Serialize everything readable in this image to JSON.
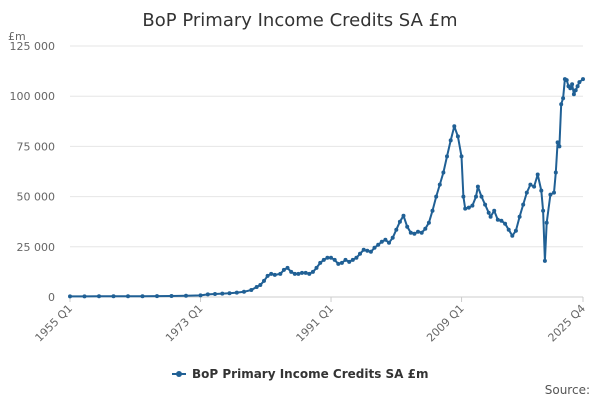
{
  "chart_data": {
    "type": "line",
    "title": "BoP Primary Income Credits SA £m",
    "unit_label": "£m",
    "ylim": [
      0,
      125000
    ],
    "y_ticks": [
      {
        "value": 0,
        "label": "0"
      },
      {
        "value": 25000,
        "label": "25 000"
      },
      {
        "value": 50000,
        "label": "50 000"
      },
      {
        "value": 75000,
        "label": "75 000"
      },
      {
        "value": 100000,
        "label": "100 000"
      },
      {
        "value": 125000,
        "label": "125 000"
      }
    ],
    "x_range": [
      "1955 Q1",
      "2025 Q4"
    ],
    "x_ticks": [
      "1955 Q1",
      "1973 Q1",
      "1991 Q1",
      "2009 Q1",
      "2025 Q4"
    ],
    "grid": "horizontal",
    "legend_position": "bottom",
    "series": [
      {
        "name": "BoP Primary Income Credits SA £m",
        "color": "#206095",
        "points": [
          [
            "1955 Q1",
            300
          ],
          [
            "1957 Q1",
            320
          ],
          [
            "1959 Q1",
            340
          ],
          [
            "1961 Q1",
            360
          ],
          [
            "1963 Q1",
            380
          ],
          [
            "1965 Q1",
            410
          ],
          [
            "1967 Q1",
            450
          ],
          [
            "1969 Q1",
            520
          ],
          [
            "1971 Q1",
            620
          ],
          [
            "1973 Q1",
            800
          ],
          [
            "1974 Q1",
            1300
          ],
          [
            "1975 Q1",
            1500
          ],
          [
            "1976 Q1",
            1700
          ],
          [
            "1977 Q1",
            1900
          ],
          [
            "1978 Q1",
            2200
          ],
          [
            "1979 Q1",
            2600
          ],
          [
            "1980 Q1",
            3500
          ],
          [
            "1980 Q4",
            5000
          ],
          [
            "1981 Q2",
            6000
          ],
          [
            "1981 Q4",
            8000
          ],
          [
            "1982 Q2",
            10500
          ],
          [
            "1982 Q4",
            11500
          ],
          [
            "1983 Q2",
            11000
          ],
          [
            "1984 Q1",
            11500
          ],
          [
            "1984 Q3",
            13500
          ],
          [
            "1985 Q1",
            14500
          ],
          [
            "1985 Q3",
            12500
          ],
          [
            "1986 Q1",
            11500
          ],
          [
            "1986 Q3",
            11500
          ],
          [
            "1987 Q1",
            12000
          ],
          [
            "1987 Q3",
            12000
          ],
          [
            "1988 Q1",
            11500
          ],
          [
            "1988 Q3",
            12500
          ],
          [
            "1989 Q1",
            14500
          ],
          [
            "1989 Q3",
            17000
          ],
          [
            "1990 Q1",
            18500
          ],
          [
            "1990 Q3",
            19500
          ],
          [
            "1991 Q1",
            19500
          ],
          [
            "1991 Q3",
            18500
          ],
          [
            "1992 Q1",
            16500
          ],
          [
            "1992 Q3",
            17000
          ],
          [
            "1993 Q1",
            18500
          ],
          [
            "1993 Q3",
            17500
          ],
          [
            "1994 Q1",
            18500
          ],
          [
            "1994 Q3",
            19500
          ],
          [
            "1995 Q1",
            21500
          ],
          [
            "1995 Q3",
            23500
          ],
          [
            "1996 Q1",
            23000
          ],
          [
            "1996 Q3",
            22500
          ],
          [
            "1997 Q1",
            24500
          ],
          [
            "1997 Q3",
            26000
          ],
          [
            "1998 Q1",
            27500
          ],
          [
            "1998 Q3",
            28500
          ],
          [
            "1999 Q1",
            27000
          ],
          [
            "1999 Q3",
            29500
          ],
          [
            "2000 Q1",
            33500
          ],
          [
            "2000 Q3",
            37500
          ],
          [
            "2001 Q1",
            40500
          ],
          [
            "2001 Q3",
            35000
          ],
          [
            "2002 Q1",
            32000
          ],
          [
            "2002 Q3",
            31500
          ],
          [
            "2003 Q1",
            32500
          ],
          [
            "2003 Q3",
            32000
          ],
          [
            "2004 Q1",
            34000
          ],
          [
            "2004 Q3",
            37000
          ],
          [
            "2005 Q1",
            43000
          ],
          [
            "2005 Q3",
            50000
          ],
          [
            "2006 Q1",
            56000
          ],
          [
            "2006 Q3",
            62000
          ],
          [
            "2007 Q1",
            70000
          ],
          [
            "2007 Q3",
            78000
          ],
          [
            "2008 Q1",
            85000
          ],
          [
            "2008 Q3",
            80000
          ],
          [
            "2009 Q1",
            70000
          ],
          [
            "2009 Q2",
            50000
          ],
          [
            "2009 Q3",
            44000
          ],
          [
            "2010 Q1",
            44500
          ],
          [
            "2010 Q3",
            45500
          ],
          [
            "2011 Q1",
            50000
          ],
          [
            "2011 Q2",
            55000
          ],
          [
            "2011 Q4",
            50000
          ],
          [
            "2012 Q2",
            46000
          ],
          [
            "2012 Q4",
            42000
          ],
          [
            "2013 Q1",
            40000
          ],
          [
            "2013 Q3",
            43000
          ],
          [
            "2014 Q1",
            38500
          ],
          [
            "2014 Q3",
            38000
          ],
          [
            "2015 Q1",
            36500
          ],
          [
            "2015 Q3",
            33500
          ],
          [
            "2016 Q1",
            30500
          ],
          [
            "2016 Q3",
            33000
          ],
          [
            "2017 Q1",
            40000
          ],
          [
            "2017 Q3",
            46000
          ],
          [
            "2018 Q1",
            52000
          ],
          [
            "2018 Q3",
            56000
          ],
          [
            "2019 Q1",
            55000
          ],
          [
            "2019 Q3",
            61000
          ],
          [
            "2020 Q1",
            53000
          ],
          [
            "2020 Q2",
            43000
          ],
          [
            "2020 Q3",
            18000
          ],
          [
            "2020 Q4",
            37000
          ],
          [
            "2021 Q2",
            51000
          ],
          [
            "2021 Q4",
            52000
          ],
          [
            "2022 Q1",
            62000
          ],
          [
            "2022 Q2",
            77000
          ],
          [
            "2022 Q3",
            75000
          ],
          [
            "2022 Q4",
            96000
          ],
          [
            "2023 Q1",
            99000
          ],
          [
            "2023 Q2",
            108500
          ],
          [
            "2023 Q3",
            108000
          ],
          [
            "2023 Q4",
            105000
          ],
          [
            "2024 Q1",
            104000
          ],
          [
            "2024 Q2",
            106000
          ],
          [
            "2024 Q3",
            101000
          ],
          [
            "2024 Q4",
            103000
          ],
          [
            "2025 Q1",
            105000
          ],
          [
            "2025 Q2",
            107000
          ],
          [
            "2025 Q4",
            108500
          ]
        ]
      }
    ],
    "source_label": "Source:"
  }
}
